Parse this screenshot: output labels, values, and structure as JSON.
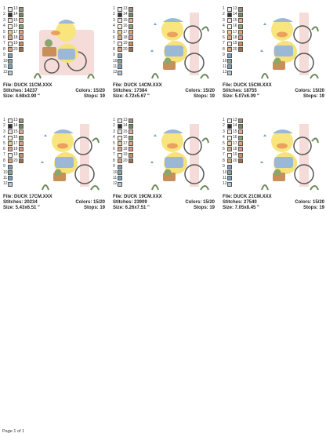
{
  "colors": {
    "palette": [
      "#e7ecf0",
      "#333333",
      "#f1dfda",
      "#f4efe4",
      "#e8d080",
      "#e1a28c",
      "#f2efe6",
      "#d3a47c",
      "#7f9bb8",
      "#82a59a",
      "#75a0c4",
      "#b2c7d6",
      "#a08f86",
      "#6a8a58",
      "#e4ad8a",
      "#89a171",
      "#e0a36f",
      "#e3908f",
      "#c88f5b",
      "#9f6e4a"
    ]
  },
  "designs": [
    {
      "file": "File: DUCK 11CM.XXX",
      "stitches": "Stitches: 14237",
      "colors": "Colors: 15/20",
      "size": "Size: 4.68x3.90 \"",
      "stops": "Stops: 19"
    },
    {
      "file": "File: DUCK 14CM.XXX",
      "stitches": "Stitches: 17384",
      "colors": "Colors: 15/20",
      "size": "Size: 4.72x5.67 \"",
      "stops": "Stops: 19"
    },
    {
      "file": "File: DUCK 15CM.XXX",
      "stitches": "Stitches: 18755",
      "colors": "Colors: 15/20",
      "size": "Size: 5.07x6.09 \"",
      "stops": "Stops: 19"
    },
    {
      "file": "File: DUCK 17CM.XXX",
      "stitches": "Stitches: 20234",
      "colors": "Colors: 15/20",
      "size": "Size: 5.43x6.51 \"",
      "stops": "Stops: 19"
    },
    {
      "file": "File: DUCK 19CM.XXX",
      "stitches": "Stitches: 23909",
      "colors": "Colors: 15/20",
      "size": "Size: 6.26x7.51 \"",
      "stops": "Stops: 19"
    },
    {
      "file": "File: DUCK 21CM.XXX",
      "stitches": "Stitches: 27540",
      "colors": "Colors: 15/20",
      "size": "Size: 7.05x8.45 \"",
      "stops": "Stops: 19"
    }
  ],
  "footer": "Page 1 of 1"
}
